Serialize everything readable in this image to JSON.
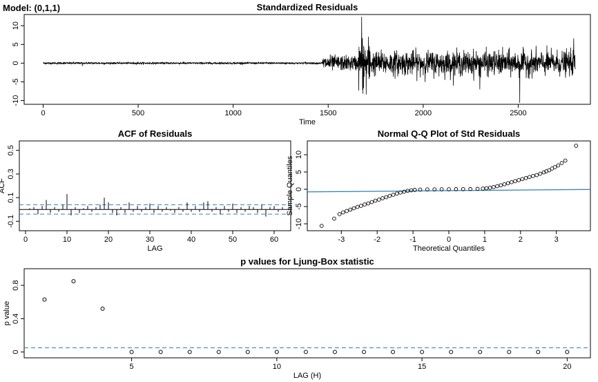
{
  "model_label": "Model: (0,1,1)",
  "chart_data": [
    {
      "id": "resid",
      "type": "line",
      "title": "Standardized Residuals",
      "xlabel": "Time",
      "ylabel": "",
      "xlim": [
        -100,
        2880
      ],
      "ylim": [
        -11,
        13
      ],
      "xticks": [
        0,
        500,
        1000,
        1500,
        2000,
        2500
      ],
      "yticks": [
        -10,
        -5,
        0,
        5,
        10
      ],
      "n": 2800,
      "regimes": [
        {
          "from": 1,
          "to": 1470,
          "sd": 0.12
        },
        {
          "from": 1470,
          "to": 1660,
          "sd": 1.0
        },
        {
          "from": 1660,
          "to": 1720,
          "sd": 3.3
        },
        {
          "from": 1720,
          "to": 2800,
          "sd": 1.6
        }
      ],
      "spikes": [
        {
          "x": 206,
          "y": -0.8
        },
        {
          "x": 1676,
          "y": 12.4
        },
        {
          "x": 1683,
          "y": -8.2
        },
        {
          "x": 1700,
          "y": -8.4
        },
        {
          "x": 2298,
          "y": -7.0
        },
        {
          "x": 2508,
          "y": -10.6
        },
        {
          "x": 2792,
          "y": 6.6
        }
      ],
      "color": "#000000"
    },
    {
      "id": "acf",
      "type": "bar",
      "title": "ACF of Residuals",
      "xlabel": "LAG",
      "ylabel": "ACF",
      "xlim": [
        -1.5,
        64
      ],
      "ylim": [
        -0.18,
        0.58
      ],
      "xticks": [
        0,
        10,
        20,
        30,
        40,
        50,
        60
      ],
      "yticks": [
        -0.1,
        0.1,
        0.3,
        0.5
      ],
      "lags": [
        1,
        2,
        3,
        4,
        5,
        6,
        7,
        8,
        9,
        10,
        11,
        12,
        13,
        14,
        15,
        16,
        17,
        18,
        19,
        20,
        21,
        22,
        23,
        24,
        25,
        26,
        27,
        28,
        29,
        30,
        31,
        32,
        33,
        34,
        35,
        36,
        37,
        38,
        39,
        40,
        41,
        42,
        43,
        44,
        45,
        46,
        47,
        48,
        49,
        50,
        51,
        52,
        53,
        54,
        55,
        56,
        57,
        58,
        59,
        60,
        61,
        62
      ],
      "values": [
        0.01,
        0.02,
        -0.04,
        0.03,
        0.08,
        -0.03,
        0.02,
        -0.02,
        0.04,
        0.13,
        -0.05,
        0.02,
        -0.03,
        0.01,
        0.03,
        -0.02,
        0.02,
        0.04,
        0.1,
        0.06,
        -0.03,
        -0.05,
        0.02,
        -0.03,
        0.06,
        -0.02,
        0.03,
        -0.02,
        0.02,
        0.05,
        -0.03,
        0.03,
        -0.02,
        0.02,
        -0.01,
        -0.03,
        0.02,
        -0.02,
        0.06,
        -0.02,
        0.03,
        -0.02,
        0.06,
        0.07,
        -0.02,
        0.02,
        -0.04,
        0.03,
        -0.02,
        0.05,
        -0.03,
        0.02,
        -0.02,
        0.03,
        0.02,
        -0.03,
        0.04,
        -0.06,
        0.02,
        0.03,
        -0.02,
        0.02
      ],
      "conf_band": [
        0.04,
        -0.04
      ],
      "color": "#000000",
      "band_color": "#2c7fb8"
    },
    {
      "id": "qq",
      "type": "scatter",
      "title": "Normal Q-Q Plot of Std Residuals",
      "xlabel": "Theoretical Quantiles",
      "ylabel": "Sample Quantiles",
      "xlim": [
        -3.95,
        3.95
      ],
      "ylim": [
        -12,
        14
      ],
      "xticks": [
        -3,
        -2,
        -1,
        0,
        1,
        2,
        3
      ],
      "yticks": [
        -10,
        -5,
        0,
        5,
        10
      ],
      "points": [
        [
          -3.55,
          -10.6
        ],
        [
          -3.2,
          -8.5
        ],
        [
          -3.05,
          -7.2
        ],
        [
          -2.95,
          -6.7
        ],
        [
          -2.85,
          -6.3
        ],
        [
          -2.75,
          -5.9
        ],
        [
          -2.65,
          -5.5
        ],
        [
          -2.55,
          -5.1
        ],
        [
          -2.45,
          -4.8
        ],
        [
          -2.35,
          -4.4
        ],
        [
          -2.25,
          -4.1
        ],
        [
          -2.15,
          -3.7
        ],
        [
          -2.05,
          -3.3
        ],
        [
          -1.95,
          -3.0
        ],
        [
          -1.85,
          -2.6
        ],
        [
          -1.75,
          -2.3
        ],
        [
          -1.65,
          -1.9
        ],
        [
          -1.55,
          -1.6
        ],
        [
          -1.45,
          -1.25
        ],
        [
          -1.35,
          -0.95
        ],
        [
          -1.25,
          -0.7
        ],
        [
          -1.15,
          -0.45
        ],
        [
          -1.05,
          -0.3
        ],
        [
          -0.95,
          -0.18
        ],
        [
          -0.8,
          -0.1
        ],
        [
          -0.6,
          -0.05
        ],
        [
          -0.4,
          -0.02
        ],
        [
          -0.2,
          0.0
        ],
        [
          0.0,
          0.0
        ],
        [
          0.2,
          0.02
        ],
        [
          0.4,
          0.04
        ],
        [
          0.6,
          0.07
        ],
        [
          0.8,
          0.12
        ],
        [
          0.95,
          0.2
        ],
        [
          1.05,
          0.3
        ],
        [
          1.15,
          0.45
        ],
        [
          1.25,
          0.65
        ],
        [
          1.35,
          0.9
        ],
        [
          1.45,
          1.15
        ],
        [
          1.55,
          1.45
        ],
        [
          1.65,
          1.75
        ],
        [
          1.75,
          2.05
        ],
        [
          1.85,
          2.35
        ],
        [
          1.95,
          2.65
        ],
        [
          2.05,
          2.95
        ],
        [
          2.15,
          3.25
        ],
        [
          2.25,
          3.55
        ],
        [
          2.35,
          3.85
        ],
        [
          2.45,
          4.1
        ],
        [
          2.55,
          4.5
        ],
        [
          2.65,
          4.9
        ],
        [
          2.72,
          5.2
        ],
        [
          2.8,
          5.5
        ],
        [
          2.88,
          6.0
        ],
        [
          2.96,
          6.4
        ],
        [
          3.05,
          6.9
        ],
        [
          3.15,
          7.6
        ],
        [
          3.25,
          8.3
        ],
        [
          3.55,
          12.6
        ]
      ],
      "ref_line": {
        "intercept": -0.4,
        "slope": 0.09
      },
      "point_color": "#000000",
      "line_color": "#2c7fb8"
    },
    {
      "id": "ljung",
      "type": "scatter",
      "title": "p values for Ljung-Box statistic",
      "xlabel": "LAG (H)",
      "ylabel": "p value",
      "xlim": [
        1.3,
        20.8
      ],
      "ylim": [
        -0.07,
        1.0
      ],
      "xticks": [
        5,
        10,
        15,
        20
      ],
      "yticks": [
        0.0,
        0.4,
        0.8
      ],
      "lags": [
        2,
        3,
        4,
        5,
        6,
        7,
        8,
        9,
        10,
        11,
        12,
        13,
        14,
        15,
        16,
        17,
        18,
        19,
        20
      ],
      "values": [
        0.63,
        0.85,
        0.52,
        0.0,
        0.0,
        0.0,
        0.0,
        0.0,
        0.0,
        0.0,
        0.0,
        0.0,
        0.0,
        0.0,
        0.0,
        0.0,
        0.0,
        0.0,
        0.0
      ],
      "ref_level": 0.05,
      "point_color": "#000000",
      "line_color": "#2c7fb8"
    }
  ]
}
